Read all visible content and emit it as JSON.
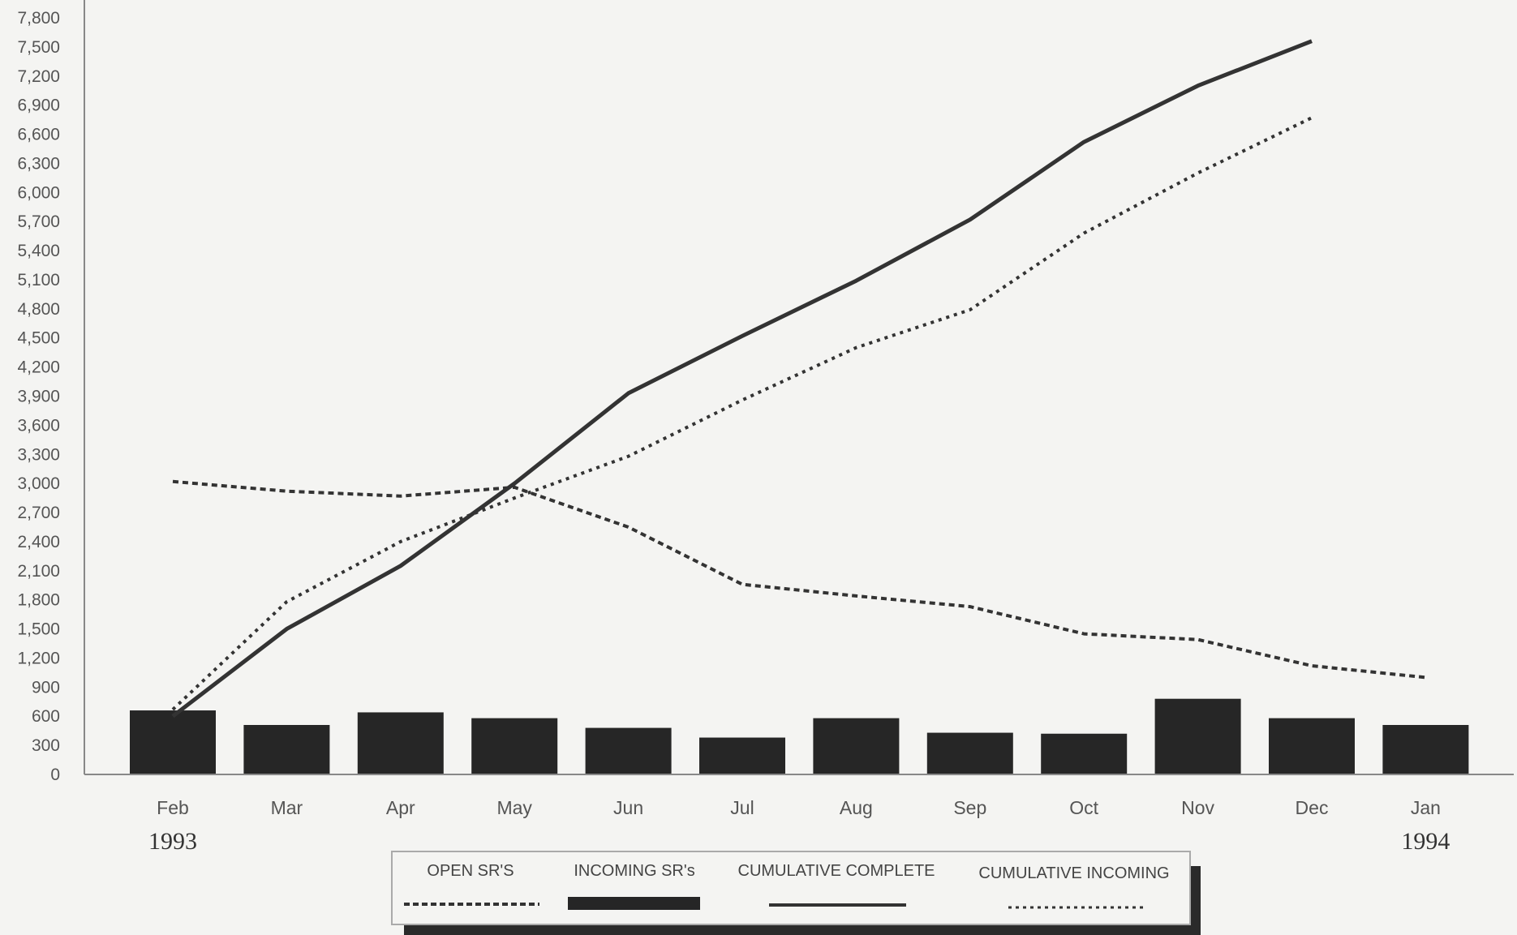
{
  "chart_data": {
    "type": "bar",
    "categories": [
      "Feb",
      "Mar",
      "Apr",
      "May",
      "Jun",
      "Jul",
      "Aug",
      "Sep",
      "Oct",
      "Nov",
      "Dec",
      "Jan"
    ],
    "year_labels": [
      {
        "category": "Feb",
        "text": "1993"
      },
      {
        "category": "Jan",
        "text": "1994"
      }
    ],
    "ylim": [
      0,
      7800
    ],
    "yticks": [
      0,
      300,
      600,
      900,
      1200,
      1500,
      1800,
      2100,
      2400,
      2700,
      3000,
      3300,
      3600,
      3900,
      4200,
      4500,
      4800,
      5100,
      5400,
      5700,
      6000,
      6300,
      6600,
      6900,
      7200,
      7500,
      7800
    ],
    "ytick_labels": [
      "0",
      "300",
      "600",
      "900",
      "1,200",
      "1,500",
      "1,800",
      "2,100",
      "2,400",
      "2,700",
      "3,000",
      "3,300",
      "3,600",
      "3,900",
      "4,200",
      "4,500",
      "4,800",
      "5,100",
      "5,400",
      "5,700",
      "6,000",
      "6,300",
      "6,600",
      "6,900",
      "7,200",
      "7,500",
      "7,800"
    ],
    "series": [
      {
        "name": "OPEN SR'S",
        "style": "dashed-line",
        "values": [
          3020,
          2920,
          2870,
          2960,
          2550,
          1960,
          1840,
          1730,
          1450,
          1390,
          1120,
          1000
        ]
      },
      {
        "name": "INCOMING SR's",
        "style": "bar",
        "values": [
          660,
          510,
          640,
          580,
          480,
          380,
          580,
          430,
          420,
          780,
          580,
          510
        ]
      },
      {
        "name": "CUMULATIVE COMPLETE",
        "style": "solid-line",
        "values": [
          600,
          1500,
          2150,
          3000,
          3930,
          4520,
          5090,
          5720,
          6520,
          7100,
          7560,
          null
        ]
      },
      {
        "name": "CUMULATIVE INCOMING",
        "style": "dotted-line",
        "values": [
          670,
          1780,
          2400,
          2850,
          3280,
          3860,
          4400,
          4790,
          5580,
          6200,
          6770,
          null
        ]
      }
    ],
    "colors": {
      "bar": "#262626",
      "line": "#333333",
      "background": "#f4f4f2",
      "axis": "#888888"
    },
    "grid": false,
    "legend_position": "bottom-center"
  }
}
